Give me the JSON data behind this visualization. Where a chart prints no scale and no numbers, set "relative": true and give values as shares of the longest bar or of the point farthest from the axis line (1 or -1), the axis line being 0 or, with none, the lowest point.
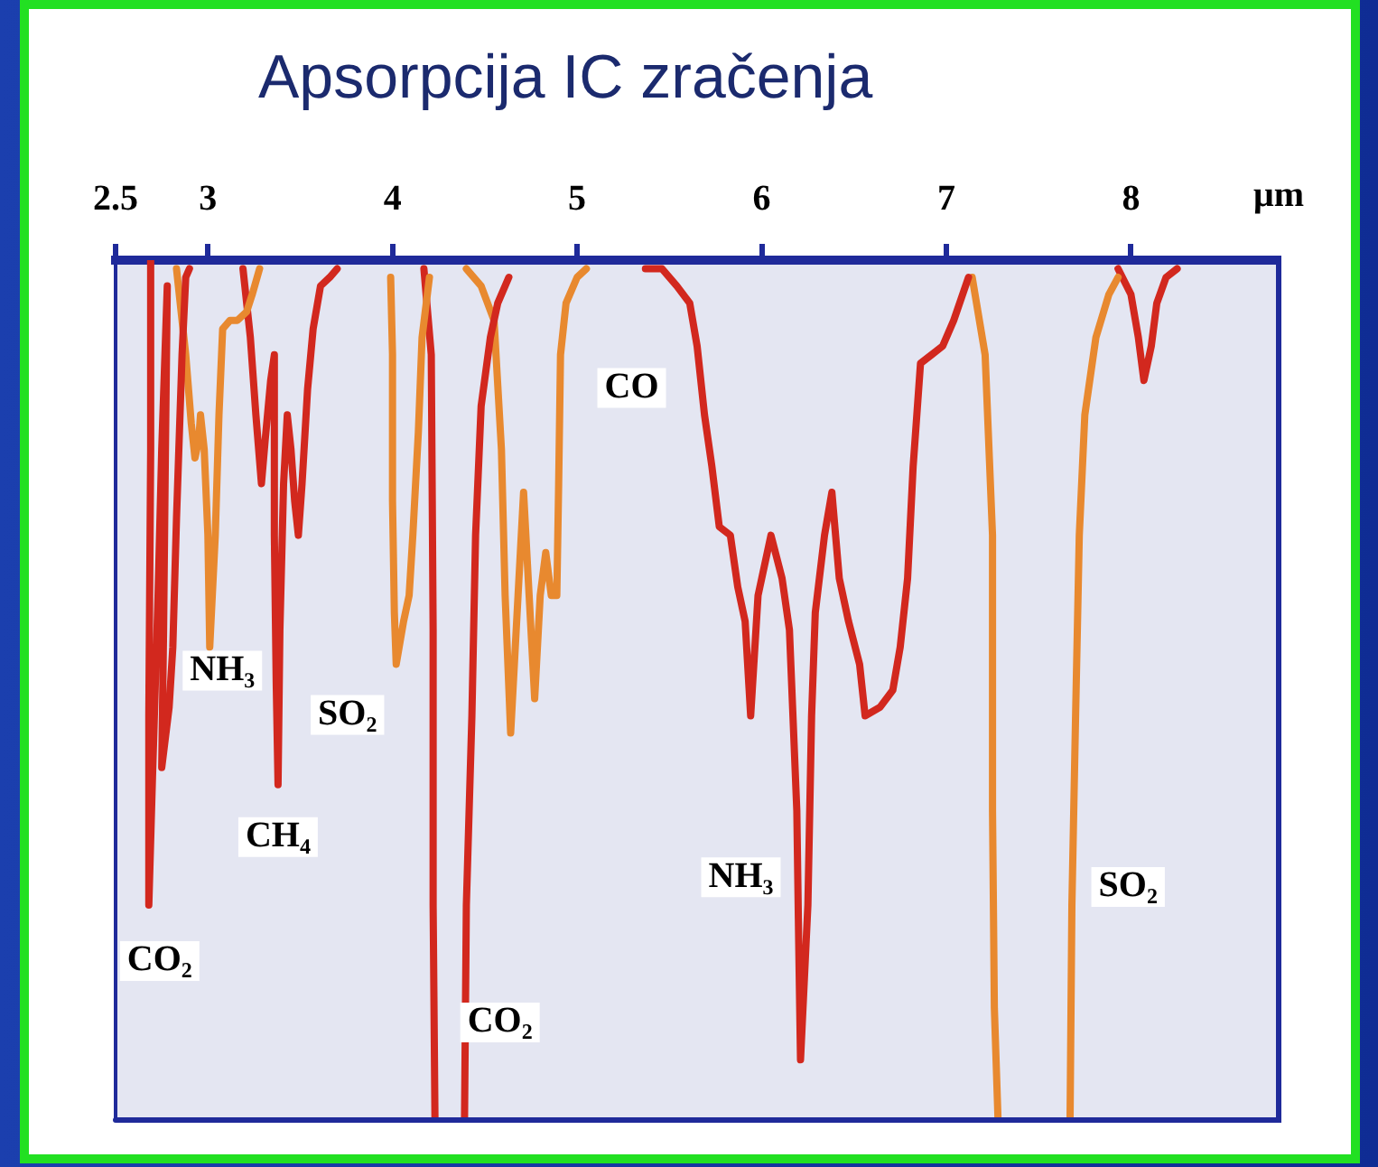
{
  "chart_data": {
    "type": "line",
    "title": "Apsorpcija IC zračenja",
    "xlabel": "μm",
    "relative": true,
    "xlim": [
      2.5,
      8.8
    ],
    "xticks": [
      2.5,
      3,
      4,
      5,
      6,
      7,
      8
    ],
    "grid": false,
    "legend": false,
    "marker": "none",
    "series": [
      {
        "name": "CO₂",
        "color": "#d2281e",
        "x": [
          2.69,
          2.69,
          2.68,
          2.68,
          2.7,
          2.73,
          2.75,
          2.78,
          2.77,
          2.76,
          2.75,
          2.79,
          2.81,
          2.83,
          2.86,
          2.88,
          2.9
        ],
        "values": [
          0,
          -0.22,
          -0.53,
          -0.75,
          -0.6,
          -0.39,
          -0.22,
          -0.03,
          -0.22,
          -0.43,
          -0.59,
          -0.52,
          -0.45,
          -0.3,
          -0.11,
          -0.02,
          -0.01
        ]
      },
      {
        "name": "NH₃",
        "color": "#e8892f",
        "x": [
          2.83,
          2.88,
          2.91,
          2.93,
          2.95,
          2.96,
          2.98,
          3.0,
          3.01,
          3.04,
          3.06,
          3.08,
          3.12,
          3.16,
          3.21,
          3.24,
          3.28
        ],
        "values": [
          -0.01,
          -0.11,
          -0.19,
          -0.23,
          -0.21,
          -0.18,
          -0.22,
          -0.32,
          -0.45,
          -0.32,
          -0.18,
          -0.08,
          -0.07,
          -0.07,
          -0.06,
          -0.04,
          -0.01
        ]
      },
      {
        "name": "CH₄",
        "color": "#d2281e",
        "x": [
          3.19,
          3.23,
          3.26,
          3.29,
          3.31,
          3.34,
          3.36,
          3.36,
          3.37,
          3.38,
          3.39,
          3.41,
          3.43,
          3.45,
          3.47,
          3.49,
          3.51,
          3.54,
          3.57,
          3.61,
          3.66,
          3.7
        ],
        "values": [
          -0.01,
          -0.09,
          -0.18,
          -0.26,
          -0.21,
          -0.14,
          -0.11,
          -0.32,
          -0.49,
          -0.61,
          -0.43,
          -0.26,
          -0.18,
          -0.22,
          -0.28,
          -0.32,
          -0.26,
          -0.15,
          -0.08,
          -0.03,
          -0.02,
          -0.01
        ]
      },
      {
        "name": "SO₂",
        "color": "#e8892f",
        "x": [
          3.99,
          4.0,
          4.0,
          4.01,
          4.02,
          4.06,
          4.09,
          4.11,
          4.14,
          4.16,
          4.2
        ],
        "values": [
          -0.02,
          -0.11,
          -0.28,
          -0.41,
          -0.47,
          -0.42,
          -0.39,
          -0.32,
          -0.2,
          -0.09,
          -0.02
        ]
      },
      {
        "name": "CO₂",
        "color": "#d2281e",
        "x": [
          4.17,
          4.21,
          4.22,
          4.22,
          4.23,
          4.31,
          4.39,
          4.4,
          4.43,
          4.45,
          4.48,
          4.53,
          4.57,
          4.63
        ],
        "values": [
          -0.01,
          -0.11,
          -0.43,
          -0.75,
          -1,
          null,
          -1,
          -0.75,
          -0.53,
          -0.32,
          -0.17,
          -0.09,
          -0.05,
          -0.02
        ]
      },
      {
        "name": "CO",
        "color": "#e8892f",
        "x": [
          4.4,
          4.48,
          4.55,
          4.59,
          4.61,
          4.64,
          4.68,
          4.71,
          4.74,
          4.77,
          4.8,
          4.83,
          4.86,
          4.89,
          4.9,
          4.91,
          4.94,
          5.0,
          5.05
        ],
        "values": [
          -0.01,
          -0.03,
          -0.07,
          -0.22,
          -0.39,
          -0.55,
          -0.39,
          -0.27,
          -0.39,
          -0.51,
          -0.39,
          -0.34,
          -0.39,
          -0.39,
          -0.26,
          -0.11,
          -0.05,
          -0.02,
          -0.01
        ]
      },
      {
        "name": "NH₃",
        "color": "#d2281e",
        "x": [
          5.37,
          5.46,
          5.54,
          5.61,
          5.65,
          5.69,
          5.73,
          5.77,
          5.83,
          5.87,
          5.91,
          5.94,
          5.98,
          6.05,
          6.11,
          6.15,
          6.19,
          6.2,
          6.21,
          6.25,
          6.27,
          6.29,
          6.34,
          6.38,
          6.42,
          6.47,
          6.53,
          6.56,
          6.64,
          6.71,
          6.75,
          6.79,
          6.82,
          6.86,
          6.92,
          6.98,
          7.04,
          7.12
        ],
        "values": [
          -0.01,
          -0.01,
          -0.03,
          -0.05,
          -0.1,
          -0.18,
          -0.24,
          -0.31,
          -0.32,
          -0.38,
          -0.42,
          -0.53,
          -0.39,
          -0.32,
          -0.37,
          -0.43,
          -0.64,
          -0.79,
          -0.93,
          -0.75,
          -0.53,
          -0.41,
          -0.32,
          -0.27,
          -0.37,
          -0.42,
          -0.47,
          -0.53,
          -0.52,
          -0.5,
          -0.45,
          -0.37,
          -0.24,
          -0.12,
          -0.11,
          -0.1,
          -0.07,
          -0.02
        ]
      },
      {
        "name": "SO₂",
        "color": "#e8892f",
        "x": [
          7.14,
          7.21,
          7.25,
          7.25,
          7.26,
          7.28,
          7.47,
          7.67,
          7.68,
          7.7,
          7.72,
          7.75,
          7.81,
          7.88,
          7.93
        ],
        "values": [
          -0.02,
          -0.11,
          -0.32,
          -0.64,
          -0.87,
          -1,
          null,
          -1,
          -0.75,
          -0.53,
          -0.32,
          -0.18,
          -0.09,
          -0.04,
          -0.02
        ]
      },
      {
        "color": "#d2281e",
        "x": [
          7.93,
          8.0,
          8.04,
          8.07,
          8.11,
          8.14,
          8.19,
          8.25
        ],
        "values": [
          -0.01,
          -0.04,
          -0.09,
          -0.14,
          -0.1,
          -0.05,
          -0.02,
          -0.01
        ]
      }
    ]
  }
}
